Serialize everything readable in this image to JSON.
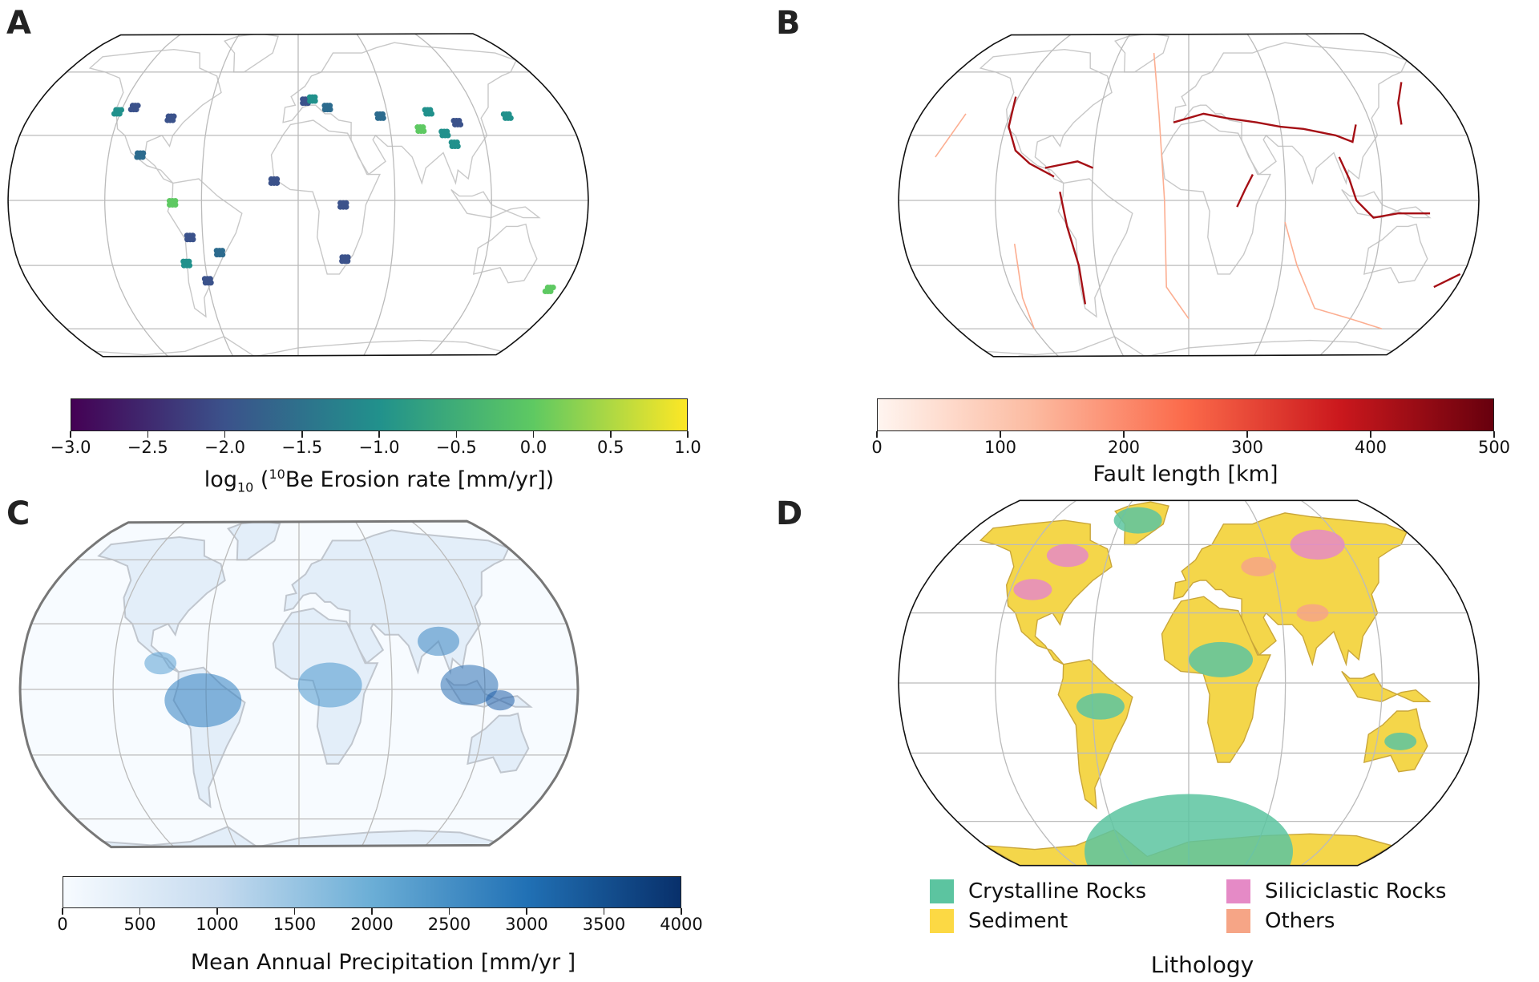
{
  "panels": [
    {
      "letter": "A",
      "colorbar": {
        "ticks": [
          "−3.0",
          "−2.5",
          "−2.0",
          "−1.5",
          "−1.0",
          "−0.5",
          "0.0",
          "0.5",
          "1.0"
        ],
        "title_prefix": "log",
        "title_sub": "10",
        "title_open": " (",
        "title_sup": "10",
        "title_rest": "Be Erosion rate [mm/yr])",
        "colors": [
          "#440154",
          "#3b528b",
          "#21918c",
          "#5ec962",
          "#fde725"
        ]
      }
    },
    {
      "letter": "B",
      "colorbar": {
        "ticks": [
          "0",
          "100",
          "200",
          "300",
          "400",
          "500"
        ],
        "title": "Fault length [km]",
        "colors": [
          "#fff5f0",
          "#fcbba1",
          "#fb6a4a",
          "#cb181d",
          "#67000d"
        ]
      }
    },
    {
      "letter": "C",
      "colorbar": {
        "ticks": [
          "0",
          "500",
          "1000",
          "1500",
          "2000",
          "2500",
          "3000",
          "3500",
          "4000"
        ],
        "title": "Mean Annual Precipitation [mm/yr ]",
        "colors": [
          "#f7fbff",
          "#c6dbef",
          "#6baed6",
          "#2171b5",
          "#08306b"
        ]
      }
    },
    {
      "letter": "D",
      "legend": {
        "items": [
          {
            "label": "Crystalline Rocks",
            "color": "#5cc4a0"
          },
          {
            "label": "Siliciclastic Rocks",
            "color": "#e58ac6"
          },
          {
            "label": "Sediment",
            "color": "#fcd944"
          },
          {
            "label": "Others",
            "color": "#f6a586"
          }
        ],
        "title": "Lithology"
      }
    }
  ]
}
